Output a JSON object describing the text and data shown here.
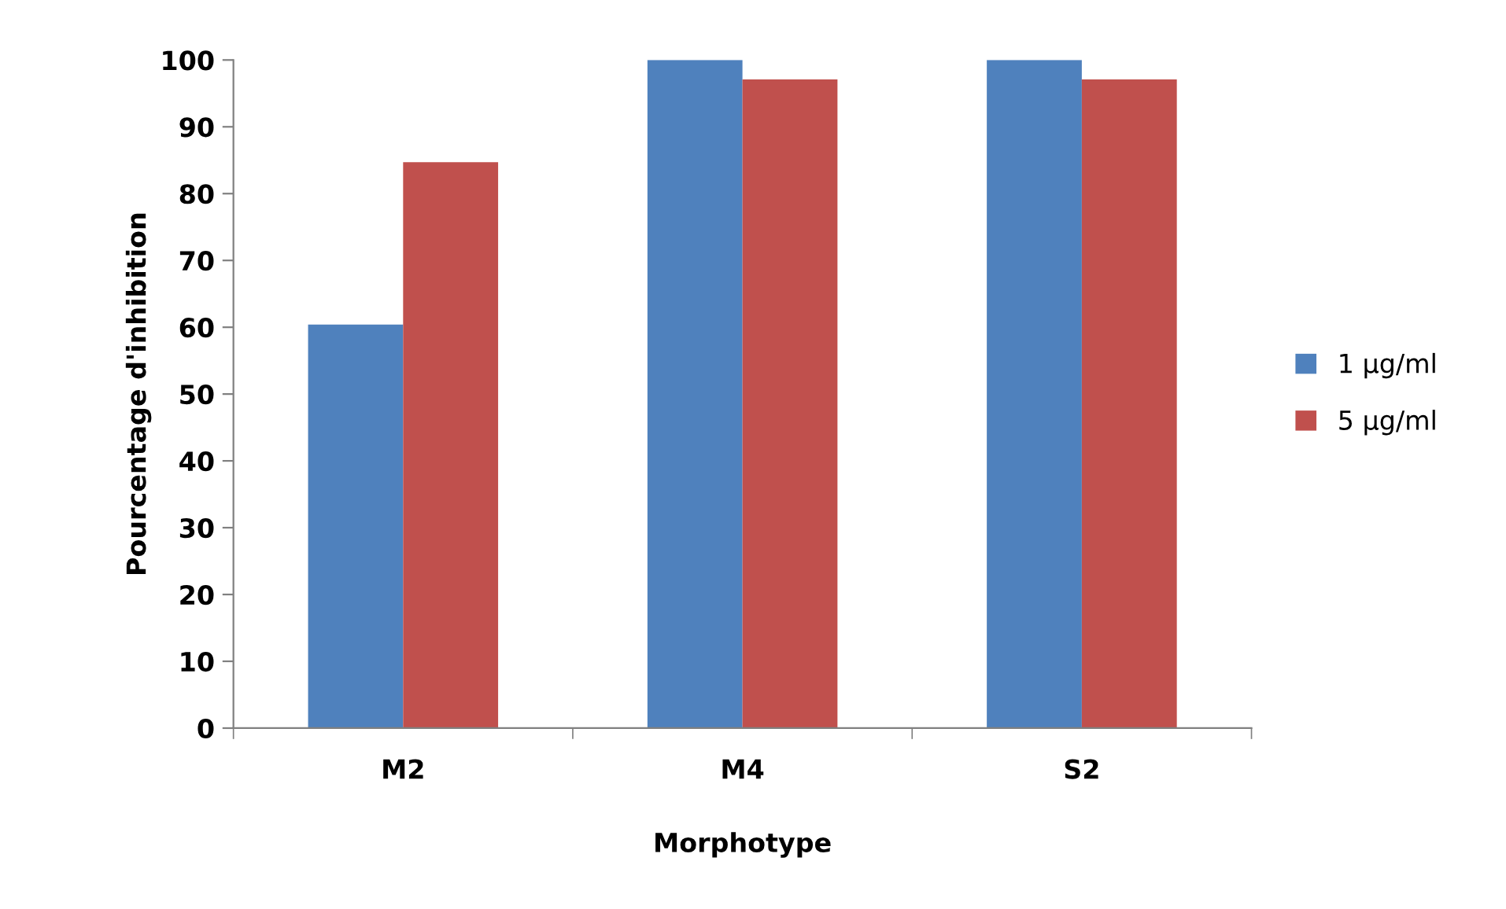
{
  "chart_data": {
    "type": "bar",
    "xlabel": "Morphotype",
    "ylabel": "Pourcentage d'inhibition",
    "categories": [
      "M2",
      "M4",
      "S2"
    ],
    "series": [
      {
        "name": "1 µg/ml",
        "color": "#4f81bd",
        "values": [
          60.4,
          100,
          100
        ]
      },
      {
        "name": "5 µg/ml",
        "color": "#c0504d",
        "values": [
          84.7,
          97.1,
          97.1
        ]
      }
    ],
    "ylim": [
      0,
      100
    ],
    "yticks": [
      0,
      10,
      20,
      30,
      40,
      50,
      60,
      70,
      80,
      90,
      100
    ],
    "grid": false,
    "legend": "right"
  }
}
